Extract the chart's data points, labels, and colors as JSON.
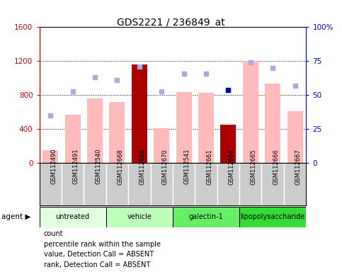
{
  "title": "GDS2221 / 236849_at",
  "samples": [
    "GSM112490",
    "GSM112491",
    "GSM112540",
    "GSM112668",
    "GSM112669",
    "GSM112670",
    "GSM112541",
    "GSM112661",
    "GSM112664",
    "GSM112665",
    "GSM112666",
    "GSM112667"
  ],
  "groups": [
    {
      "name": "untreated",
      "indices": [
        0,
        1,
        2
      ],
      "color": "#dfffdf"
    },
    {
      "name": "vehicle",
      "indices": [
        3,
        4,
        5
      ],
      "color": "#bbffbb"
    },
    {
      "name": "galectin-1",
      "indices": [
        6,
        7,
        8
      ],
      "color": "#66ee66"
    },
    {
      "name": "lipopolysaccharide",
      "indices": [
        9,
        10,
        11
      ],
      "color": "#33dd33"
    }
  ],
  "bar_values": [
    150,
    570,
    760,
    720,
    1165,
    415,
    840,
    830,
    455,
    1200,
    940,
    610
  ],
  "bar_is_dark": [
    false,
    false,
    false,
    false,
    true,
    false,
    false,
    false,
    true,
    false,
    false,
    false
  ],
  "scatter_rank_pct": [
    35,
    53,
    63,
    61,
    71,
    53,
    66,
    66,
    54,
    74,
    70,
    57
  ],
  "scatter_rank_is_dark": [
    false,
    false,
    false,
    false,
    false,
    false,
    false,
    false,
    true,
    false,
    false,
    false
  ],
  "ylim_left": [
    0,
    1600
  ],
  "ylim_right": [
    0,
    100
  ],
  "yticks_left": [
    0,
    400,
    800,
    1200,
    1600
  ],
  "ytick_labels_right": [
    "0",
    "25",
    "50",
    "75",
    "100%"
  ],
  "bar_color_light": "#ffbbbb",
  "bar_color_dark": "#aa0000",
  "scatter_rank_color_light": "#aaaadd",
  "scatter_rank_color_dark": "#0000cc",
  "bg_sample": "#cccccc",
  "left_label_color": "#cc0000",
  "right_label_color": "#0000cc",
  "legend_items": [
    {
      "color": "#cc0000",
      "label": "count"
    },
    {
      "color": "#0000cc",
      "label": "percentile rank within the sample"
    },
    {
      "color": "#ffbbbb",
      "label": "value, Detection Call = ABSENT"
    },
    {
      "color": "#aaaadd",
      "label": "rank, Detection Call = ABSENT"
    }
  ]
}
